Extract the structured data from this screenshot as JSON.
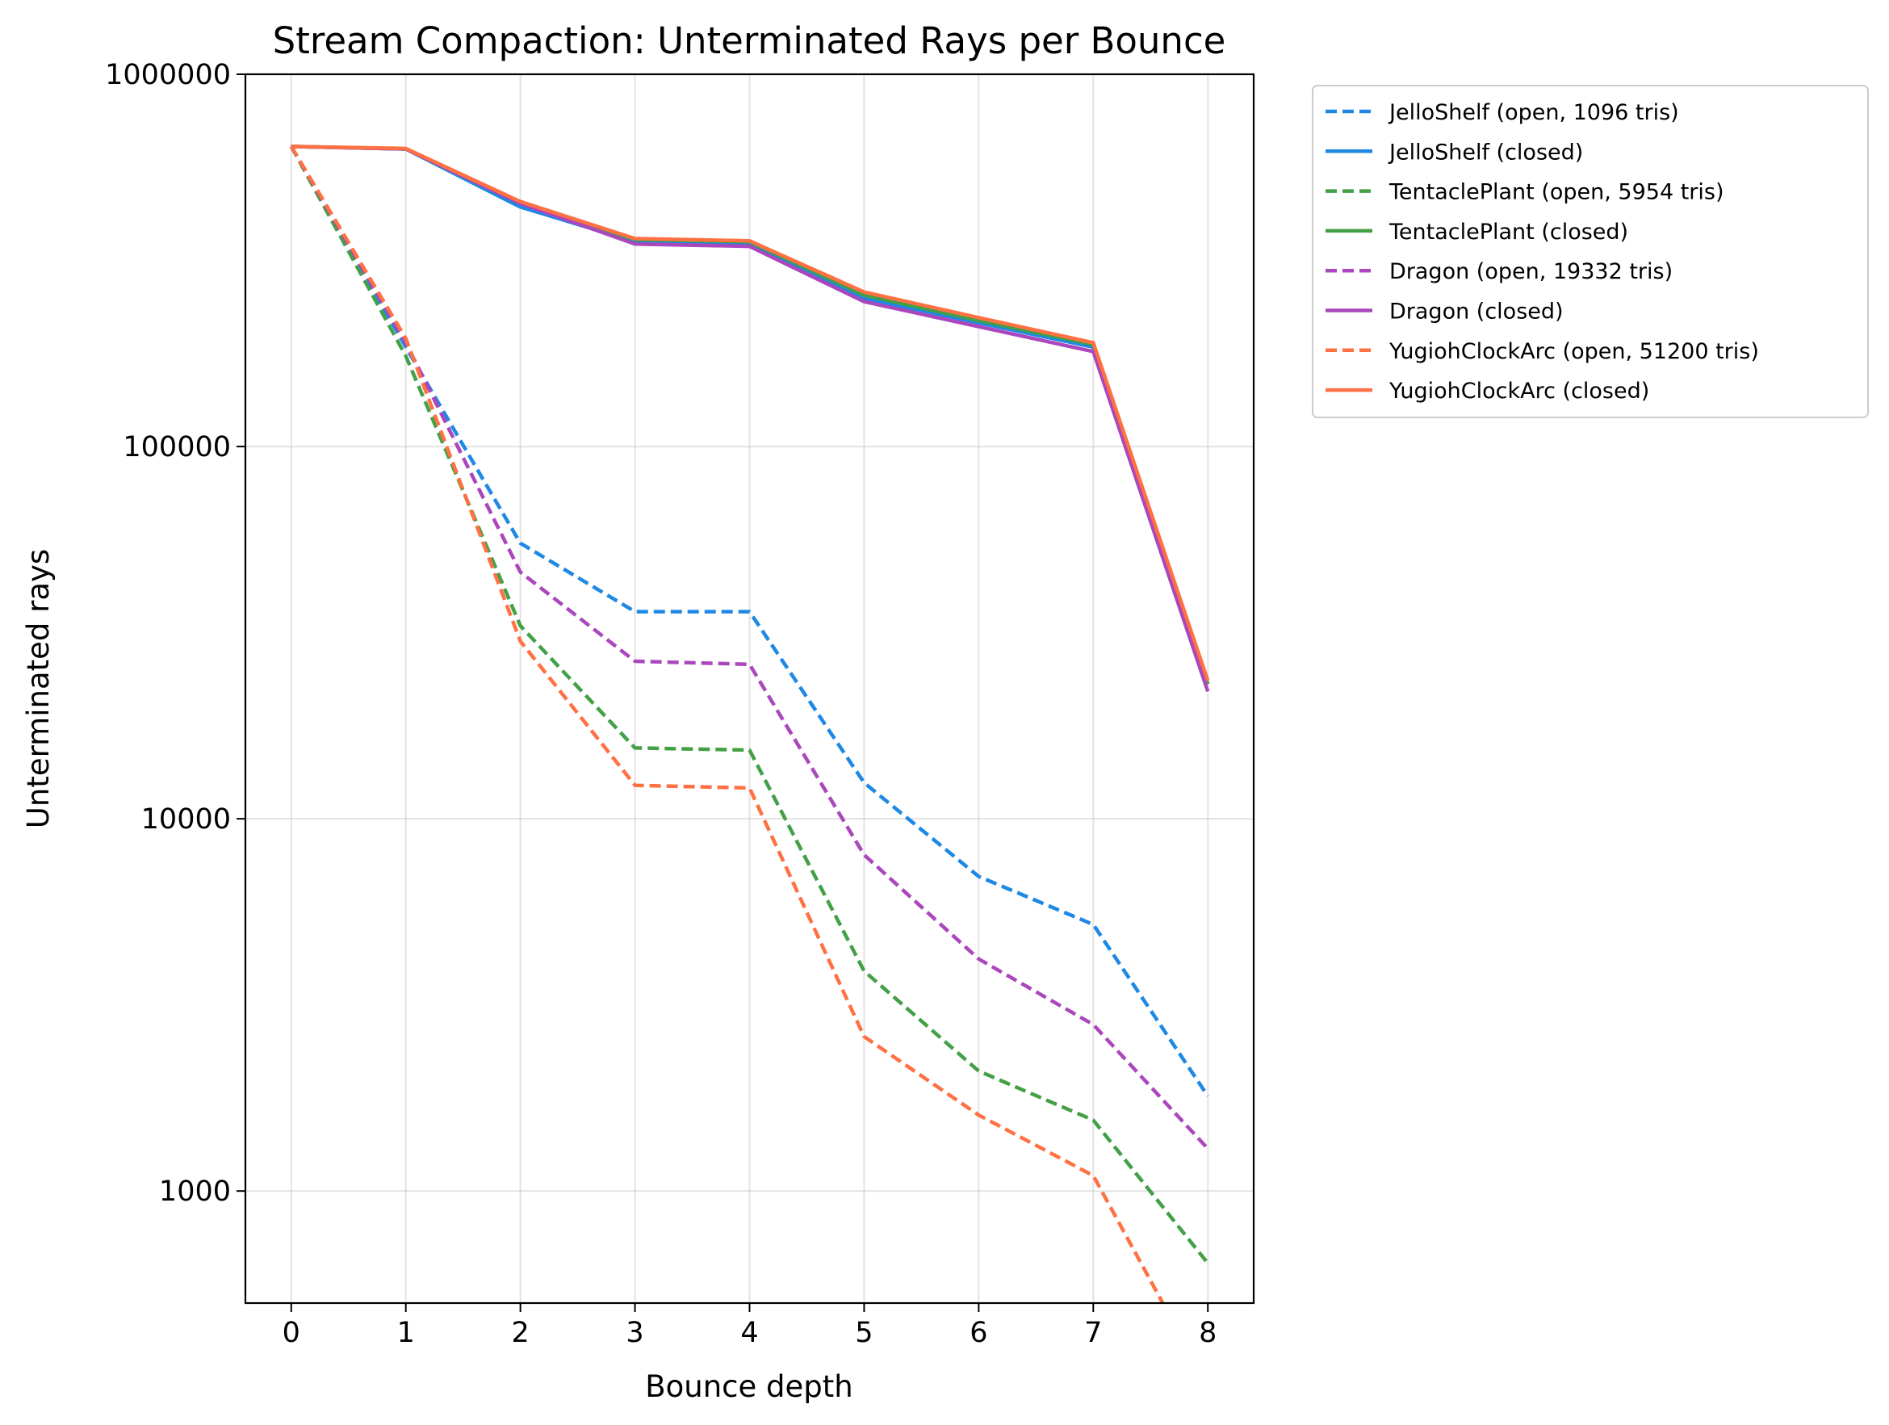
{
  "chart_data": {
    "type": "line",
    "title": "Stream Compaction: Unterminated Rays per Bounce",
    "xlabel": "Bounce depth",
    "ylabel": "Unterminated rays",
    "x": [
      0,
      1,
      2,
      3,
      4,
      5,
      6,
      7,
      8
    ],
    "xlim": [
      -0.4,
      8.4
    ],
    "ylim": [
      500,
      1000000
    ],
    "yscale": "log",
    "x_ticks": [
      "0",
      "1",
      "2",
      "3",
      "4",
      "5",
      "6",
      "7",
      "8"
    ],
    "y_ticks": [
      {
        "value": 1000,
        "label": "1000"
      },
      {
        "value": 10000,
        "label": "10000"
      },
      {
        "value": 100000,
        "label": "100000"
      },
      {
        "value": 1000000,
        "label": "1000000"
      }
    ],
    "grid": true,
    "legend_position": "outside-top-right",
    "series": [
      {
        "name": "JelloShelf (open, 1096 tris)",
        "color": "#1e88e5",
        "style": "dashed",
        "values": [
          640000,
          185000,
          55000,
          36000,
          36000,
          12500,
          7000,
          5200,
          1800
        ]
      },
      {
        "name": "JelloShelf (closed)",
        "color": "#1e88e5",
        "style": "solid",
        "values": [
          640000,
          630000,
          440000,
          355000,
          350000,
          250000,
          215000,
          185000,
          23000
        ]
      },
      {
        "name": "TentaclePlant (open, 5954 tris)",
        "color": "#43a047",
        "style": "dashed",
        "values": [
          640000,
          175000,
          33000,
          15500,
          15300,
          3900,
          2100,
          1550,
          640
        ]
      },
      {
        "name": "TentaclePlant (closed)",
        "color": "#43a047",
        "style": "solid",
        "values": [
          640000,
          630000,
          450000,
          360000,
          355000,
          255000,
          218000,
          188000,
          23000
        ]
      },
      {
        "name": "Dragon (open, 19332 tris)",
        "color": "#ab47bc",
        "style": "dashed",
        "values": [
          640000,
          190000,
          46000,
          26500,
          26000,
          8000,
          4200,
          2800,
          1300
        ]
      },
      {
        "name": "Dragon (closed)",
        "color": "#ab47bc",
        "style": "solid",
        "values": [
          640000,
          630000,
          450000,
          350000,
          345000,
          245000,
          210000,
          180000,
          22000
        ]
      },
      {
        "name": "YugiohClockArc (open, 51200 tris)",
        "color": "#ff7043",
        "style": "dashed",
        "values": [
          640000,
          195000,
          30000,
          12300,
          12100,
          2600,
          1600,
          1100,
          300
        ]
      },
      {
        "name": "YugiohClockArc (closed)",
        "color": "#ff7043",
        "style": "solid",
        "values": [
          640000,
          632000,
          455000,
          362000,
          357000,
          260000,
          222000,
          190000,
          23500
        ]
      }
    ]
  }
}
